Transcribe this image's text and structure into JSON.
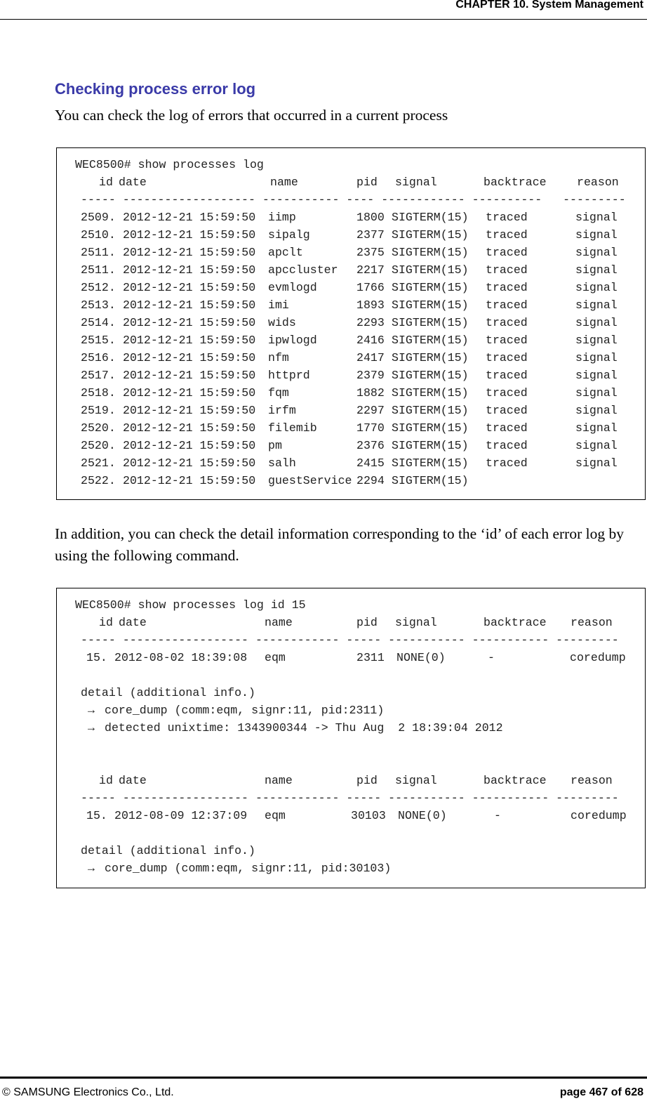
{
  "header": {
    "chapter": "CHAPTER 10. System Management"
  },
  "section": {
    "title": "Checking process error log",
    "intro": "You can check the log of errors that occurred in a current process"
  },
  "block1": {
    "command": "WEC8500# show processes log",
    "headers": [
      "id",
      "date",
      "name",
      "pid",
      "signal",
      "backtrace",
      "reason"
    ],
    "dashes": "----- ------------------- ----------- ---- ------------ ----------   ---------",
    "rows": [
      [
        "2509.",
        "2012-12-21 15:59:50",
        "iimp",
        "1800",
        "SIGTERM(15)",
        "traced",
        "signal"
      ],
      [
        "2510.",
        "2012-12-21 15:59:50",
        "sipalg",
        "2377",
        "SIGTERM(15)",
        "traced",
        "signal"
      ],
      [
        "2511.",
        "2012-12-21 15:59:50",
        "apclt",
        "2375",
        "SIGTERM(15)",
        "traced",
        "signal"
      ],
      [
        "2511.",
        "2012-12-21 15:59:50",
        "apccluster",
        "2217",
        "SIGTERM(15)",
        "traced",
        "signal"
      ],
      [
        "2512.",
        "2012-12-21 15:59:50",
        "evmlogd",
        "1766",
        "SIGTERM(15)",
        "traced",
        "signal"
      ],
      [
        "2513.",
        "2012-12-21 15:59:50",
        "imi",
        "1893",
        "SIGTERM(15)",
        "traced",
        "signal"
      ],
      [
        "2514.",
        "2012-12-21 15:59:50",
        "wids",
        "2293",
        "SIGTERM(15)",
        "traced",
        "signal"
      ],
      [
        "2515.",
        "2012-12-21 15:59:50",
        "ipwlogd",
        "2416",
        "SIGTERM(15)",
        "traced",
        "signal"
      ],
      [
        "2516.",
        "2012-12-21 15:59:50",
        "nfm",
        "2417",
        "SIGTERM(15)",
        "traced",
        "signal"
      ],
      [
        "2517.",
        "2012-12-21 15:59:50",
        "httprd",
        "2379",
        "SIGTERM(15)",
        "traced",
        "signal"
      ],
      [
        "2518.",
        "2012-12-21 15:59:50",
        "fqm",
        "1882",
        "SIGTERM(15)",
        "traced",
        "signal"
      ],
      [
        "2519.",
        "2012-12-21 15:59:50",
        "irfm",
        "2297",
        "SIGTERM(15)",
        "traced",
        "signal"
      ],
      [
        "2520.",
        "2012-12-21 15:59:50",
        "filemib",
        "1770",
        "SIGTERM(15)",
        "traced",
        "signal"
      ],
      [
        "2520.",
        "2012-12-21 15:59:50",
        "pm",
        "2376",
        "SIGTERM(15)",
        "traced",
        "signal"
      ],
      [
        "2521.",
        "2012-12-21 15:59:50",
        "salh",
        "2415",
        "SIGTERM(15)",
        "traced",
        "signal"
      ],
      [
        "2522.",
        "2012-12-21 15:59:50",
        "guestService",
        "2294",
        "SIGTERM(15)",
        "",
        ""
      ]
    ]
  },
  "middle_text": "In addition, you can check the detail information corresponding to the ‘id’ of each error log by using the following command.",
  "block2": {
    "command": "WEC8500# show processes log id 15",
    "headers": [
      "id",
      "date",
      "name",
      "pid",
      "signal",
      "backtrace",
      "reason"
    ],
    "dashes": "----- ------------------ ------------ ----- ----------- ----------- ---------",
    "entries": [
      {
        "row": [
          "15.",
          "2012-08-02 18:39:08",
          "eqm",
          "2311",
          "NONE(0)",
          "-",
          "coredump"
        ],
        "detail_label": "detail (additional info.)",
        "details": [
          "core_dump (comm:eqm, signr:11, pid:2311)",
          "detected unixtime: 1343900344 -> Thu Aug  2 18:39:04 2012"
        ]
      },
      {
        "row": [
          "15.",
          "2012-08-09 12:37:09",
          "eqm",
          "30103",
          "NONE(0)",
          "-",
          "coredump"
        ],
        "detail_label": "detail (additional info.)",
        "details": [
          "core_dump (comm:eqm, signr:11, pid:30103)"
        ]
      }
    ],
    "arrow": "→"
  },
  "footer": {
    "copyright": "© SAMSUNG Electronics Co., Ltd.",
    "page": "page 467 of 628"
  }
}
